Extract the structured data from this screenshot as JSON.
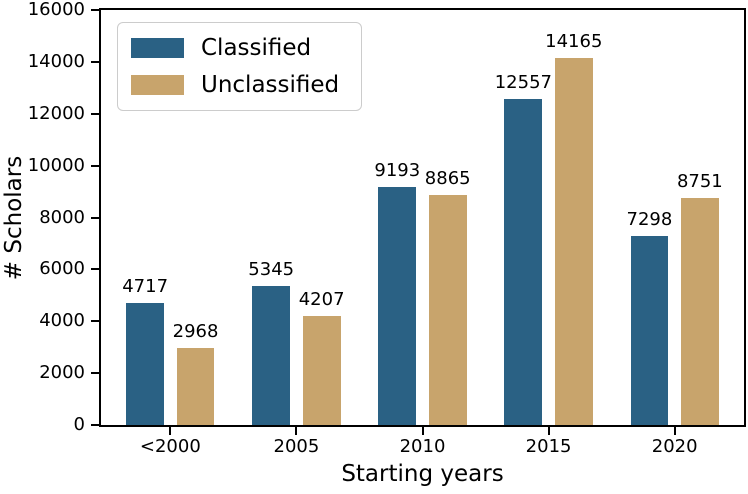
{
  "chart_data": {
    "type": "bar",
    "title": "",
    "categories": [
      "<2000",
      "2005",
      "2010",
      "2015",
      "2020"
    ],
    "series": [
      {
        "name": "Classified",
        "color": "#2a6184",
        "values": [
          4717,
          5345,
          9193,
          12557,
          7298
        ]
      },
      {
        "name": "Unclassified",
        "color": "#c8a46c",
        "values": [
          2968,
          4207,
          8865,
          14165,
          8751
        ]
      }
    ],
    "xlabel": "Starting years",
    "ylabel": "# Scholars",
    "ylim": [
      0,
      16000
    ],
    "yticks": [
      0,
      2000,
      4000,
      6000,
      8000,
      10000,
      12000,
      14000,
      16000
    ],
    "grid": false,
    "bar_value_labels": true,
    "legend": {
      "position": "upper left",
      "entries": [
        "Classified",
        "Unclassified"
      ]
    },
    "colors": {
      "axis": "#000000",
      "text": "#000000",
      "legend_border": "#cccccc",
      "background": "#ffffff"
    }
  }
}
